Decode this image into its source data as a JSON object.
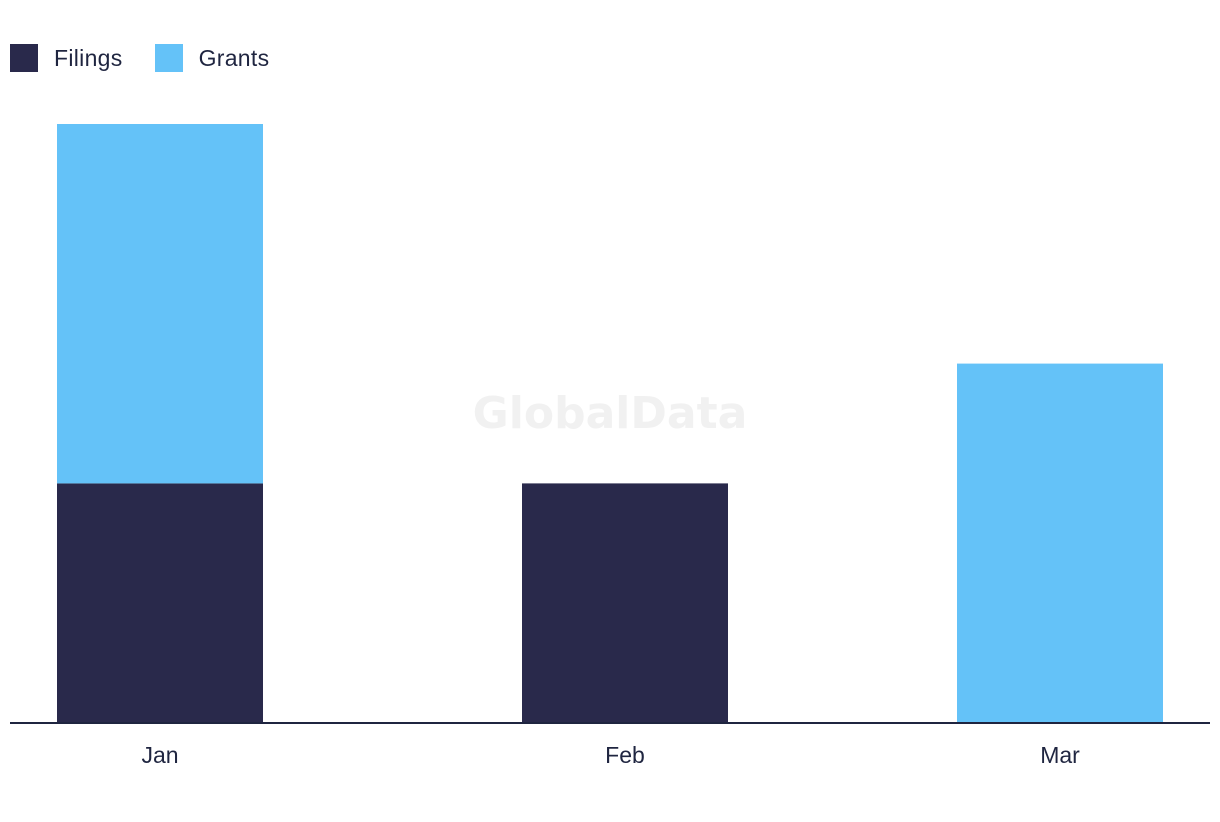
{
  "chart_data": {
    "type": "bar",
    "stacked": true,
    "categories": [
      "Jan",
      "Feb",
      "Mar"
    ],
    "series": [
      {
        "name": "Filings",
        "values": [
          2,
          2,
          0
        ],
        "color": "#29294b"
      },
      {
        "name": "Grants",
        "values": [
          3,
          0,
          3
        ],
        "color": "#64c2f8"
      }
    ],
    "ylim": [
      0,
      5
    ],
    "grid": false,
    "legend_position": "top-left",
    "watermark": "GlobalData"
  }
}
